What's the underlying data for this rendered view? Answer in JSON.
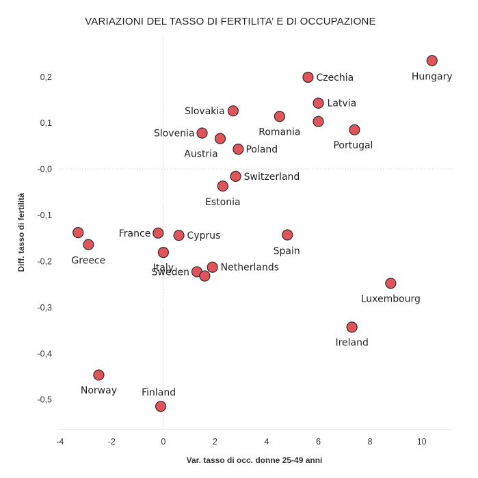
{
  "chart_data": {
    "type": "scatter",
    "title": "VARIAZIONI DEL TASSO DI FERTILITA’ E DI OCCUPAZIONE",
    "xlabel": "Var. tasso di occ. donne 25-49 anni",
    "ylabel": "Diff. tasso di fertilità",
    "xlim": [
      -4.1,
      11.2
    ],
    "ylim": [
      -0.565,
      0.285
    ],
    "xticks": [
      {
        "v": -4,
        "label": "-4"
      },
      {
        "v": -2,
        "label": "-2"
      },
      {
        "v": 0,
        "label": "0"
      },
      {
        "v": 2,
        "label": "2"
      },
      {
        "v": 4,
        "label": "4"
      },
      {
        "v": 6,
        "label": "6"
      },
      {
        "v": 8,
        "label": "8"
      },
      {
        "v": 10,
        "label": "10"
      }
    ],
    "yticks": [
      {
        "v": 0.2,
        "label": "0,2"
      },
      {
        "v": 0.1,
        "label": "0,1"
      },
      {
        "v": 0.0,
        "label": "-0,0"
      },
      {
        "v": -0.1,
        "label": "-0,1"
      },
      {
        "v": -0.2,
        "label": "-0,2"
      },
      {
        "v": -0.3,
        "label": "-0,3"
      },
      {
        "v": -0.4,
        "label": "-0,4"
      },
      {
        "v": -0.5,
        "label": "-0,5"
      }
    ],
    "grid": false,
    "marker_color": "#e0555c",
    "points": [
      {
        "x": 10.4,
        "y": 0.235,
        "label": "Hungary"
      },
      {
        "x": 5.6,
        "y": 0.199,
        "label": "Czechia"
      },
      {
        "x": 6.0,
        "y": 0.143,
        "label": "Latvia"
      },
      {
        "x": 2.7,
        "y": 0.126,
        "label": "Slovakia"
      },
      {
        "x": 4.5,
        "y": 0.114,
        "label": "Romania"
      },
      {
        "x": 6.0,
        "y": 0.103,
        "label": ""
      },
      {
        "x": 7.4,
        "y": 0.085,
        "label": "Portugal"
      },
      {
        "x": 1.5,
        "y": 0.078,
        "label": "Slovenia"
      },
      {
        "x": 2.2,
        "y": 0.066,
        "label": "Austria"
      },
      {
        "x": 2.9,
        "y": 0.043,
        "label": "Poland"
      },
      {
        "x": 2.8,
        "y": -0.016,
        "label": "Switzerland"
      },
      {
        "x": 2.3,
        "y": -0.037,
        "label": "Estonia"
      },
      {
        "x": -3.3,
        "y": -0.138,
        "label": ""
      },
      {
        "x": -2.9,
        "y": -0.164,
        "label": "Greece"
      },
      {
        "x": -0.2,
        "y": -0.139,
        "label": "France"
      },
      {
        "x": 0.6,
        "y": -0.144,
        "label": "Cyprus"
      },
      {
        "x": 4.8,
        "y": -0.143,
        "label": "Spain"
      },
      {
        "x": 0.0,
        "y": -0.181,
        "label": "Italy"
      },
      {
        "x": 1.3,
        "y": -0.223,
        "label": "Sweden"
      },
      {
        "x": 1.6,
        "y": -0.232,
        "label": ""
      },
      {
        "x": 1.9,
        "y": -0.213,
        "label": "Netherlands"
      },
      {
        "x": 8.8,
        "y": -0.248,
        "label": "Luxembourg"
      },
      {
        "x": 7.3,
        "y": -0.343,
        "label": "Ireland"
      },
      {
        "x": -2.5,
        "y": -0.447,
        "label": "Norway"
      },
      {
        "x": -0.1,
        "y": -0.515,
        "label": "Finland"
      }
    ]
  }
}
